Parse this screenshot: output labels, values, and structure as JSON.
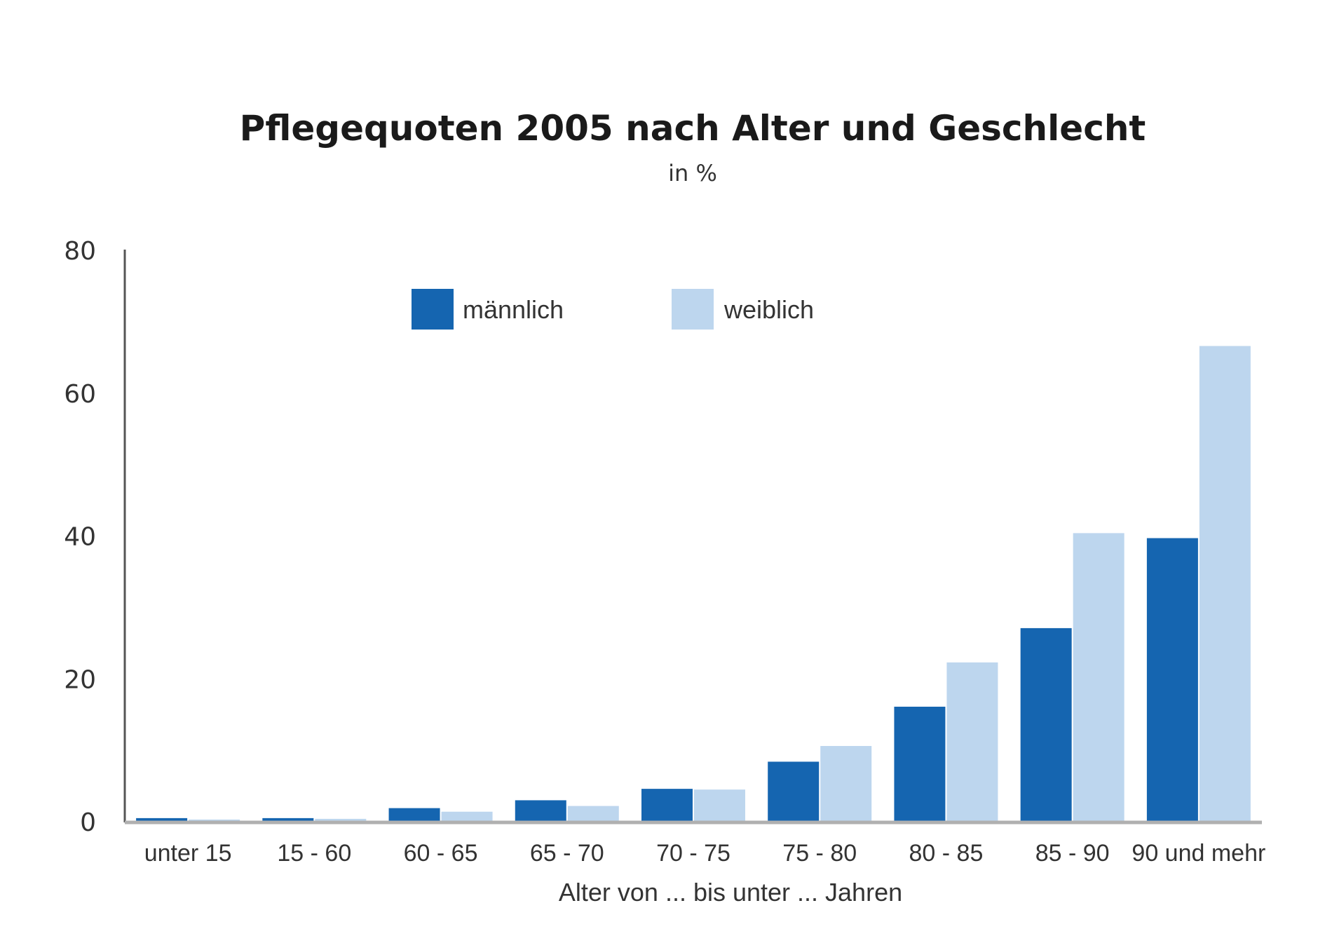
{
  "chart_data": {
    "type": "bar",
    "title": "Pflegequoten 2005 nach Alter und Geschlecht",
    "subtitle": "in %",
    "xlabel": "Alter von ... bis unter ... Jahren",
    "ylabel": "",
    "ylim": [
      0,
      80
    ],
    "yticks": [
      0,
      20,
      40,
      60,
      80
    ],
    "grid": false,
    "legend_position": "top",
    "categories": [
      "unter 15",
      "15 - 60",
      "60 - 65",
      "65 - 70",
      "70 - 75",
      "75 - 80",
      "80 - 85",
      "85 - 90",
      "90 und mehr"
    ],
    "series": [
      {
        "name": "männlich",
        "color": "#1565b0",
        "values": [
          0.6,
          0.6,
          2.0,
          3.1,
          4.7,
          8.5,
          16.2,
          27.2,
          39.8
        ]
      },
      {
        "name": "weiblich",
        "color": "#bdd6ee",
        "values": [
          0.4,
          0.5,
          1.5,
          2.3,
          4.6,
          10.7,
          22.4,
          40.5,
          66.7
        ]
      }
    ]
  }
}
